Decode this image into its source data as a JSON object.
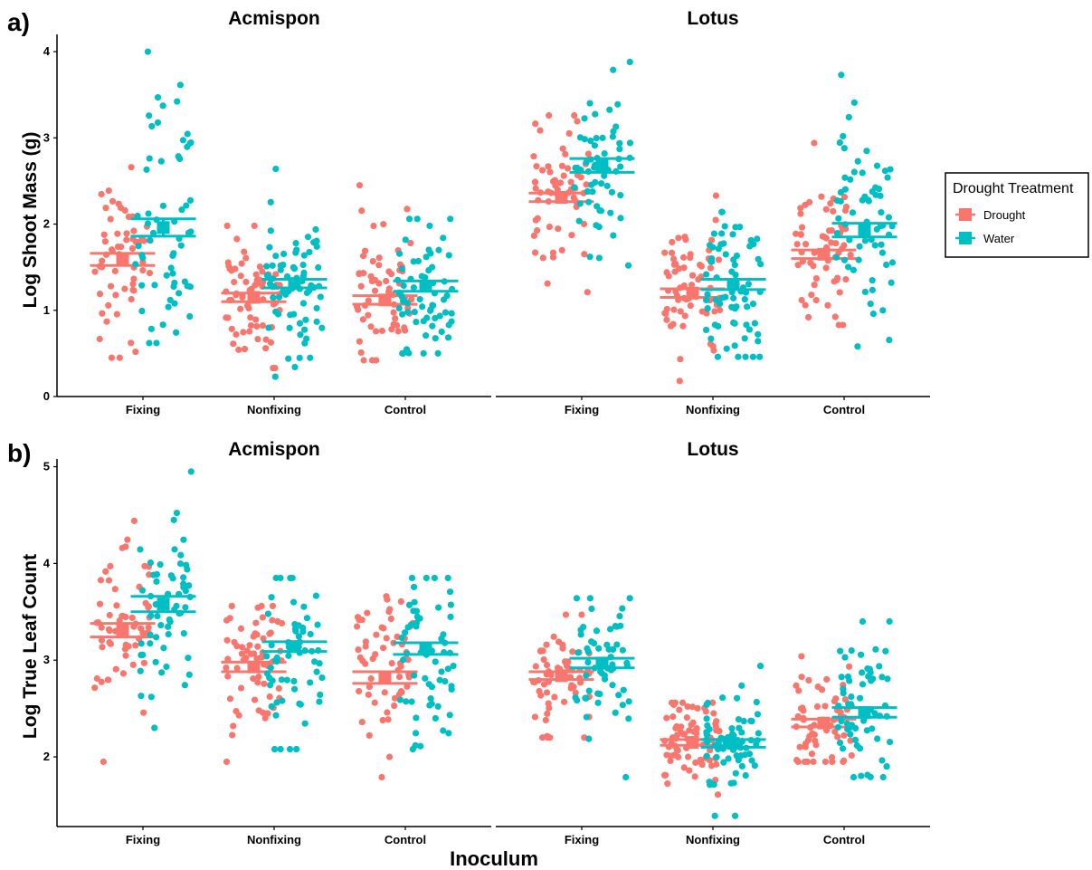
{
  "figure": {
    "x_axis_label": "Inoculum",
    "legend": {
      "title": "Drought Treatment",
      "items": [
        {
          "label": "Drought",
          "color": "#F8766D"
        },
        {
          "label": "Water",
          "color": "#00BFC4"
        }
      ]
    }
  },
  "chart_data": [
    {
      "type": "scatter",
      "panel_tag": "a)",
      "ylabel": "Log Shoot Mass (g)",
      "ylim": [
        0,
        4.2
      ],
      "yticks": [
        0,
        1,
        2,
        3,
        4
      ],
      "categories": [
        "Fixing",
        "Nonfixing",
        "Control"
      ],
      "grid": false,
      "facets": [
        {
          "title": "Acmispon",
          "groups": [
            {
              "category": "Fixing",
              "treatment": "Drought",
              "mean": 1.59,
              "se": 0.07,
              "spread": 0.52,
              "n": 60,
              "min": 0.45,
              "max": 2.66
            },
            {
              "category": "Fixing",
              "treatment": "Water",
              "mean": 1.96,
              "se": 0.1,
              "spread": 0.78,
              "n": 60,
              "min": 0.62,
              "max": 4.0
            },
            {
              "category": "Nonfixing",
              "treatment": "Drought",
              "mean": 1.15,
              "se": 0.05,
              "spread": 0.35,
              "n": 70,
              "min": 0.33,
              "max": 1.98
            },
            {
              "category": "Nonfixing",
              "treatment": "Water",
              "mean": 1.31,
              "se": 0.05,
              "spread": 0.42,
              "n": 70,
              "min": 0.23,
              "max": 2.64
            },
            {
              "category": "Control",
              "treatment": "Drought",
              "mean": 1.12,
              "se": 0.05,
              "spread": 0.38,
              "n": 60,
              "min": 0.42,
              "max": 2.45
            },
            {
              "category": "Control",
              "treatment": "Water",
              "mean": 1.28,
              "se": 0.06,
              "spread": 0.42,
              "n": 65,
              "min": 0.5,
              "max": 2.06
            }
          ]
        },
        {
          "title": "Lotus",
          "groups": [
            {
              "category": "Fixing",
              "treatment": "Drought",
              "mean": 2.31,
              "se": 0.05,
              "spread": 0.38,
              "n": 60,
              "min": 1.21,
              "max": 3.26
            },
            {
              "category": "Fixing",
              "treatment": "Water",
              "mean": 2.68,
              "se": 0.08,
              "spread": 0.58,
              "n": 60,
              "min": 1.52,
              "max": 3.88
            },
            {
              "category": "Nonfixing",
              "treatment": "Drought",
              "mean": 1.2,
              "se": 0.05,
              "spread": 0.4,
              "n": 70,
              "min": 0.18,
              "max": 2.33
            },
            {
              "category": "Nonfixing",
              "treatment": "Water",
              "mean": 1.3,
              "se": 0.06,
              "spread": 0.45,
              "n": 70,
              "min": 0.46,
              "max": 2.14
            },
            {
              "category": "Control",
              "treatment": "Drought",
              "mean": 1.65,
              "se": 0.05,
              "spread": 0.4,
              "n": 60,
              "min": 0.83,
              "max": 2.94
            },
            {
              "category": "Control",
              "treatment": "Water",
              "mean": 1.93,
              "se": 0.08,
              "spread": 0.55,
              "n": 65,
              "min": 0.58,
              "max": 3.73
            }
          ]
        }
      ]
    },
    {
      "type": "scatter",
      "panel_tag": "b)",
      "ylabel": "Log True Leaf Count",
      "ylim": [
        1.28,
        5.08
      ],
      "yticks": [
        2,
        3,
        4,
        5
      ],
      "categories": [
        "Fixing",
        "Nonfixing",
        "Control"
      ],
      "grid": false,
      "facets": [
        {
          "title": "Acmispon",
          "groups": [
            {
              "category": "Fixing",
              "treatment": "Drought",
              "mean": 3.31,
              "se": 0.07,
              "spread": 0.45,
              "n": 60,
              "min": 1.95,
              "max": 4.44
            },
            {
              "category": "Fixing",
              "treatment": "Water",
              "mean": 3.58,
              "se": 0.08,
              "spread": 0.55,
              "n": 60,
              "min": 2.3,
              "max": 4.95
            },
            {
              "category": "Nonfixing",
              "treatment": "Drought",
              "mean": 2.93,
              "se": 0.05,
              "spread": 0.38,
              "n": 65,
              "min": 1.95,
              "max": 3.56
            },
            {
              "category": "Nonfixing",
              "treatment": "Water",
              "mean": 3.14,
              "se": 0.05,
              "spread": 0.42,
              "n": 60,
              "min": 2.08,
              "max": 3.85
            },
            {
              "category": "Control",
              "treatment": "Drought",
              "mean": 2.82,
              "se": 0.06,
              "spread": 0.45,
              "n": 60,
              "min": 1.79,
              "max": 3.66
            },
            {
              "category": "Control",
              "treatment": "Water",
              "mean": 3.12,
              "se": 0.06,
              "spread": 0.45,
              "n": 60,
              "min": 2.08,
              "max": 3.85
            }
          ]
        },
        {
          "title": "Lotus",
          "groups": [
            {
              "category": "Fixing",
              "treatment": "Drought",
              "mean": 2.84,
              "se": 0.04,
              "spread": 0.3,
              "n": 60,
              "min": 2.2,
              "max": 3.47
            },
            {
              "category": "Fixing",
              "treatment": "Water",
              "mean": 2.97,
              "se": 0.05,
              "spread": 0.35,
              "n": 60,
              "min": 1.79,
              "max": 3.64
            },
            {
              "category": "Nonfixing",
              "treatment": "Drought",
              "mean": 2.15,
              "se": 0.03,
              "spread": 0.22,
              "n": 75,
              "min": 1.61,
              "max": 2.56
            },
            {
              "category": "Nonfixing",
              "treatment": "Water",
              "mean": 2.14,
              "se": 0.04,
              "spread": 0.25,
              "n": 70,
              "min": 1.39,
              "max": 2.94
            },
            {
              "category": "Control",
              "treatment": "Drought",
              "mean": 2.35,
              "se": 0.04,
              "spread": 0.28,
              "n": 60,
              "min": 1.95,
              "max": 3.04
            },
            {
              "category": "Control",
              "treatment": "Water",
              "mean": 2.46,
              "se": 0.05,
              "spread": 0.38,
              "n": 60,
              "min": 1.79,
              "max": 3.4
            }
          ]
        }
      ]
    }
  ]
}
